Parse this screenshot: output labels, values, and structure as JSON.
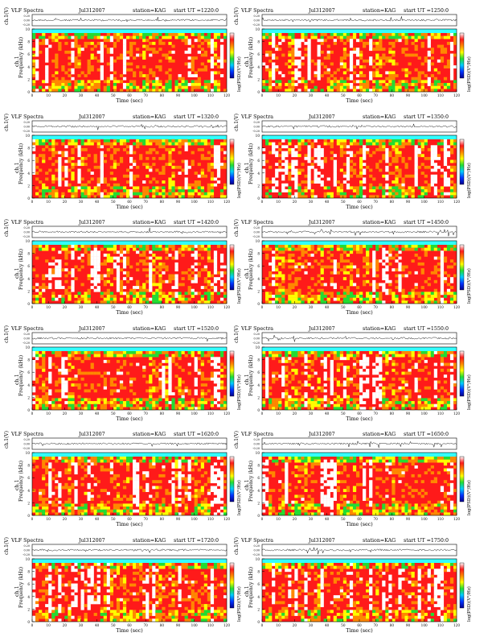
{
  "header": {
    "title": "VLF Spectra",
    "date": "Jul312007",
    "station": "station=KAG",
    "start_prefix": "start  UT  ="
  },
  "axes": {
    "ch1_label": "ch.1(V)",
    "ch1_ticks": [
      "0.20",
      "0.00",
      "-0.20"
    ],
    "freq_label": "Frequency  (kHz)",
    "freq_side_label": "ch.1",
    "freq_ticks": [
      "0",
      "2",
      "4",
      "6",
      "8",
      "10"
    ],
    "time_label": "Time  (sec)",
    "time_ticks": [
      "0",
      "10",
      "20",
      "30",
      "40",
      "50",
      "60",
      "70",
      "80",
      "90",
      "100",
      "110",
      "120"
    ],
    "colorbar_label": "log(PSD)(V²/Hz)"
  },
  "colors": {
    "scale": [
      "#00008b",
      "#0033ff",
      "#00ccff",
      "#22dd33",
      "#ffff00",
      "#ff8800",
      "#ff1a1a",
      "#ffffff"
    ],
    "band_top": "#33ffff"
  },
  "panels": [
    {
      "start_time": "1220:0"
    },
    {
      "start_time": "1250:0"
    },
    {
      "start_time": "1320:0"
    },
    {
      "start_time": "1350:0"
    },
    {
      "start_time": "1420:0"
    },
    {
      "start_time": "1450:0"
    },
    {
      "start_time": "1520:0"
    },
    {
      "start_time": "1550:0"
    },
    {
      "start_time": "1620:0"
    },
    {
      "start_time": "1650:0"
    },
    {
      "start_time": "1720:0"
    },
    {
      "start_time": "1750:0"
    }
  ],
  "chart_data": {
    "type": "heatmap",
    "description": "12 VLF spectrogram panels, each with ch.1 waveform strip above",
    "x_range": [
      0,
      120
    ],
    "freq_range_khz": [
      0,
      10
    ],
    "ch1_range_v": [
      -0.2,
      0.2
    ],
    "panel_count": 12
  }
}
